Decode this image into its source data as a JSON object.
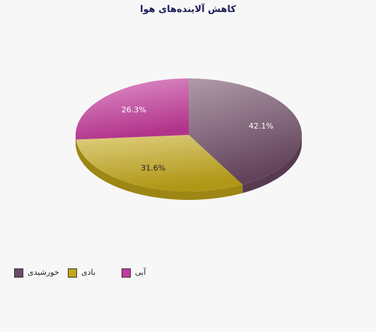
{
  "chart_data": {
    "type": "pie",
    "title": "کاهش آلاینده‌های هوا",
    "categories": [
      "خورشیدی",
      "بادی",
      "آبی"
    ],
    "values": [
      42.1,
      31.6,
      26.3
    ],
    "data_labels": [
      "42.1%",
      "31.6%",
      "26.3%"
    ],
    "colors": [
      "#6e4a64",
      "#c4a818",
      "#c63a9c"
    ],
    "legend_position": "bottom-left",
    "style": "3d"
  }
}
